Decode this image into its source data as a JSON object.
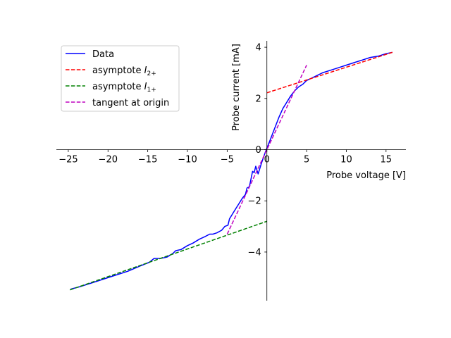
{
  "chart_data": {
    "type": "line",
    "xlabel": "Probe voltage [V]",
    "ylabel": "Probe current [mA]",
    "xlim": [
      -26.5,
      17.5
    ],
    "ylim": [
      -5.9,
      4.25
    ],
    "xticks": [
      -25,
      -20,
      -15,
      -10,
      -5,
      0,
      5,
      10,
      15
    ],
    "xtick_labels": [
      "−25",
      "−20",
      "−15",
      "−10",
      "−5",
      "0",
      "5",
      "10",
      "15"
    ],
    "yticks": [
      -4,
      -2,
      0,
      2,
      4
    ],
    "ytick_labels": [
      "−4",
      "−2",
      "0",
      "2",
      "4"
    ],
    "grid": false,
    "legend_position": "upper-left",
    "series": [
      {
        "name": "Data",
        "color": "#0000ff",
        "style": "solid",
        "x": [
          -24.7,
          -23.5,
          -22.0,
          -20.5,
          -19.0,
          -17.5,
          -16.0,
          -14.8,
          -14.2,
          -13.4,
          -12.6,
          -11.8,
          -11.5,
          -10.8,
          -10.0,
          -9.3,
          -8.5,
          -7.8,
          -7.2,
          -6.8,
          -6.3,
          -5.7,
          -5.3,
          -4.9,
          -4.7,
          -4.5,
          -4.0,
          -3.5,
          -3.1,
          -2.7,
          -2.5,
          -2.2,
          -1.8,
          -1.6,
          -1.4,
          -1.1,
          -0.7,
          -0.2,
          0.0,
          0.5,
          1.0,
          1.5,
          2.0,
          2.5,
          3.0,
          3.5,
          4.0,
          4.5,
          5.0,
          6.0,
          7.0,
          8.0,
          9.0,
          10.0,
          11.0,
          12.0,
          13.0,
          14.0,
          15.0,
          15.8
        ],
        "y": [
          -5.45,
          -5.35,
          -5.2,
          -5.05,
          -4.9,
          -4.75,
          -4.55,
          -4.4,
          -4.25,
          -4.25,
          -4.2,
          -4.05,
          -3.95,
          -3.9,
          -3.75,
          -3.65,
          -3.5,
          -3.4,
          -3.3,
          -3.3,
          -3.25,
          -3.15,
          -3.0,
          -2.95,
          -2.7,
          -2.6,
          -2.35,
          -2.1,
          -1.9,
          -1.75,
          -1.5,
          -1.45,
          -0.85,
          -0.9,
          -0.65,
          -0.95,
          -0.55,
          -0.1,
          0.05,
          0.45,
          0.85,
          1.25,
          1.6,
          1.85,
          2.1,
          2.3,
          2.45,
          2.55,
          2.7,
          2.85,
          3.0,
          3.1,
          3.2,
          3.3,
          3.4,
          3.5,
          3.6,
          3.65,
          3.75,
          3.8
        ]
      },
      {
        "name": "asymptote I2+",
        "color": "#ff0000",
        "style": "dashed",
        "x": [
          0.0,
          16.0
        ],
        "y": [
          2.22,
          3.82
        ]
      },
      {
        "name": "asymptote I1+",
        "color": "#008000",
        "style": "dashed",
        "x": [
          -24.8,
          0.0
        ],
        "y": [
          -5.48,
          -2.8
        ]
      },
      {
        "name": "tangent at origin",
        "color": "#bf00bf",
        "style": "dashed",
        "x": [
          -5.0,
          5.0
        ],
        "y": [
          -3.3,
          3.3
        ]
      }
    ],
    "legend": {
      "entries": [
        {
          "label": "Data",
          "base": "",
          "sub": ""
        },
        {
          "label": "",
          "base": "asymptote ",
          "sub": "2+"
        },
        {
          "label": "",
          "base": "asymptote ",
          "sub": "1+"
        },
        {
          "label": "tangent at origin",
          "base": "",
          "sub": ""
        }
      ]
    }
  }
}
